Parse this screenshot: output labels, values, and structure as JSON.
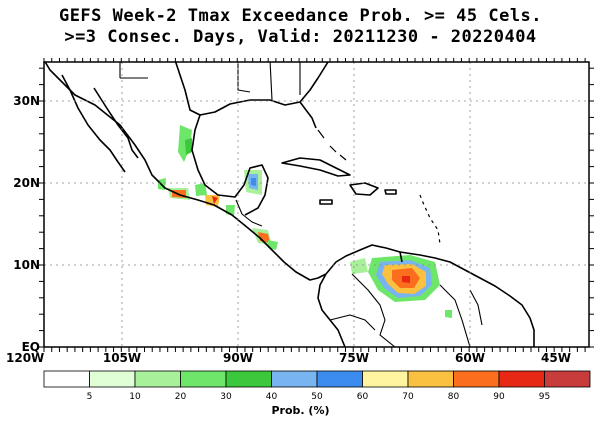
{
  "title": {
    "line1": "GEFS Week-2 Tmax Exceedance Prob. >= 45 Cels.",
    "line2": ">=3 Consec. Days, Valid: 20211230 - 20220404"
  },
  "map": {
    "lon_ticks": [
      "120W",
      "105W",
      "90W",
      "75W",
      "60W",
      "45W"
    ],
    "lat_ticks": [
      "30N",
      "20N",
      "10N",
      "EQ"
    ],
    "extent": {
      "lon_min": -120,
      "lon_max": -42,
      "lat_min": 0,
      "lat_max": 35
    },
    "grid": "dotted"
  },
  "colorbar": {
    "label": "Prob. (%)",
    "thresholds": [
      "5",
      "10",
      "20",
      "30",
      "40",
      "50",
      "60",
      "70",
      "80",
      "90",
      "95"
    ],
    "colors": [
      "#ffffff",
      "#e0ffd7",
      "#a8f09a",
      "#6ee66a",
      "#3cc83c",
      "#78b4f0",
      "#3c8cf0",
      "#fff5a0",
      "#fac040",
      "#fa6e1e",
      "#e62814",
      "#c83c3c"
    ]
  }
}
